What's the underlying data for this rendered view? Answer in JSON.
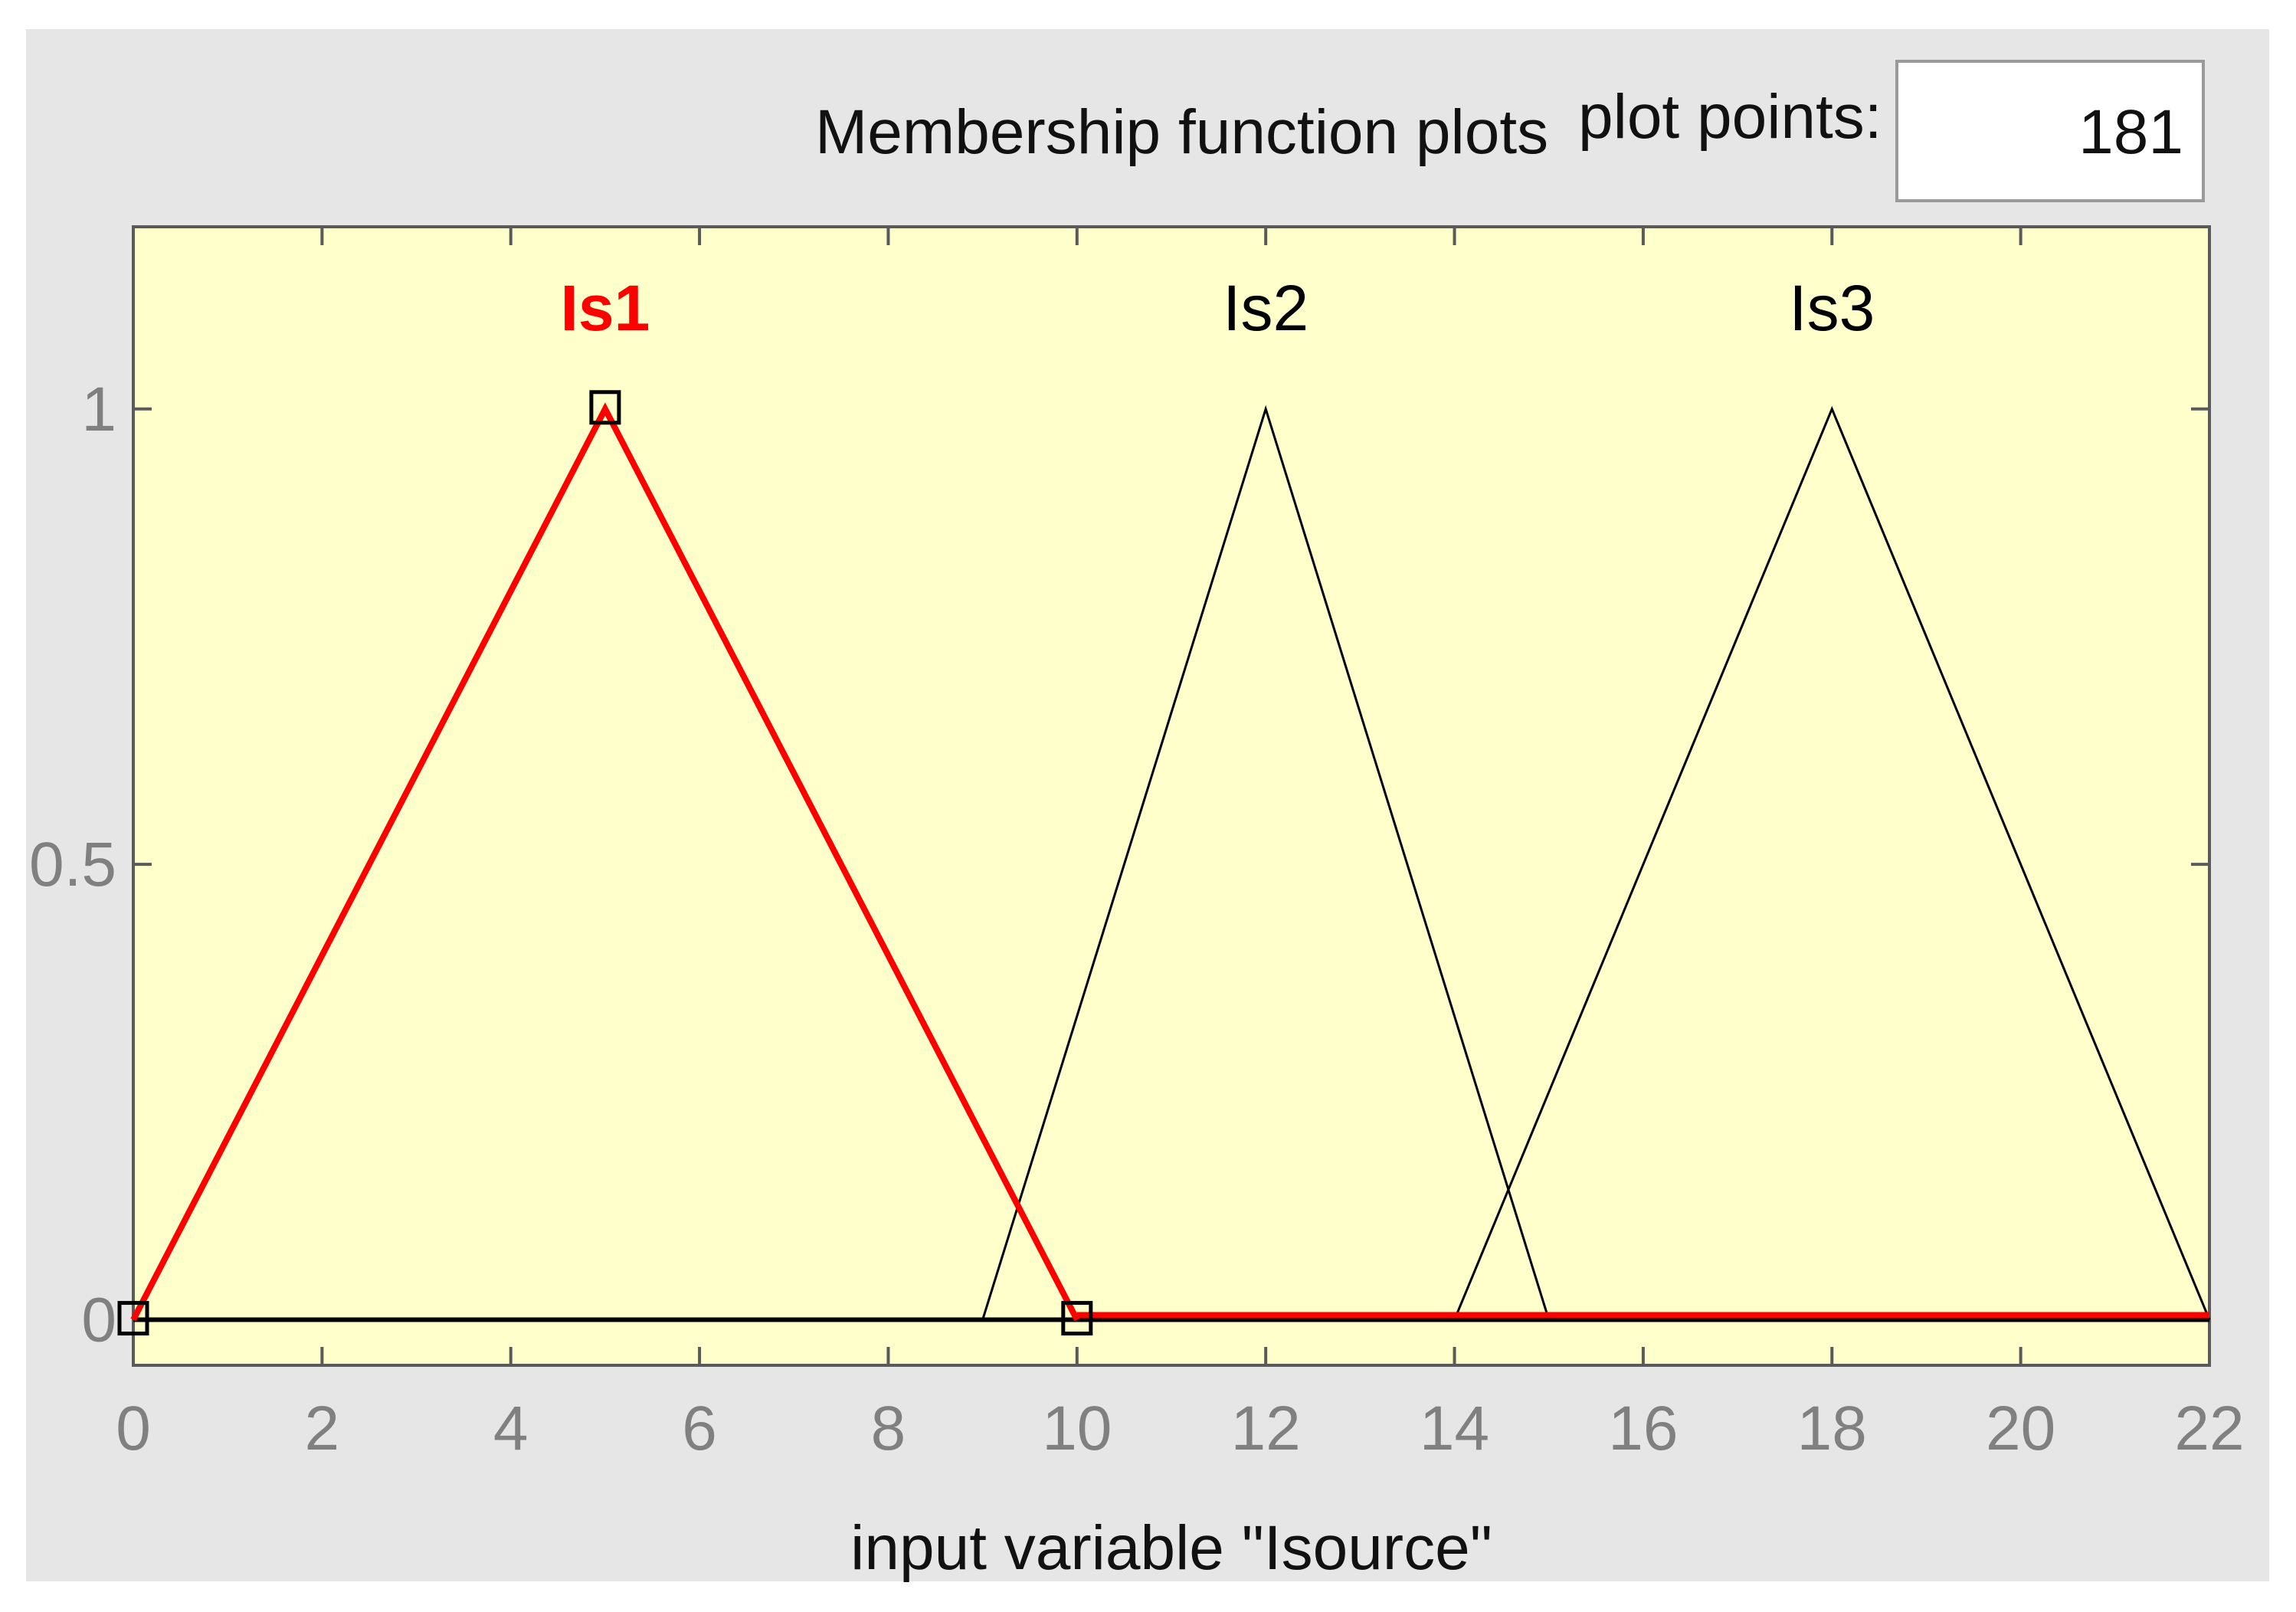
{
  "header": {
    "title": "Membership function plots",
    "plot_points_label": "plot points:",
    "plot_points_value": "181"
  },
  "colors": {
    "panel_bg": "#e6e6e6",
    "plot_bg": "#ffffcc",
    "selected": "#ff0000",
    "unselected": "#000000",
    "tick_text": "#808080"
  },
  "chart_data": {
    "type": "line",
    "xlabel": "input variable \"Isource\"",
    "ylabel": "",
    "xlim": [
      0,
      22
    ],
    "ylim": [
      -0.05,
      1.2
    ],
    "x_ticks": [
      0,
      2,
      4,
      6,
      8,
      10,
      12,
      14,
      16,
      18,
      20,
      22
    ],
    "y_ticks": [
      0,
      0.5,
      1
    ],
    "y_tick_labels": [
      "0",
      "0.5",
      "1"
    ],
    "grid": false,
    "series": [
      {
        "name": "Is1",
        "shape": "triangle",
        "x": [
          0,
          5,
          10
        ],
        "y": [
          0,
          1,
          0
        ],
        "selected": true
      },
      {
        "name": "Is2",
        "shape": "triangle",
        "x": [
          9,
          12,
          15
        ],
        "y": [
          0,
          1,
          0
        ],
        "selected": false
      },
      {
        "name": "Is3",
        "shape": "triangle",
        "x": [
          14,
          18,
          22
        ],
        "y": [
          0,
          1,
          0
        ],
        "selected": false
      }
    ]
  }
}
